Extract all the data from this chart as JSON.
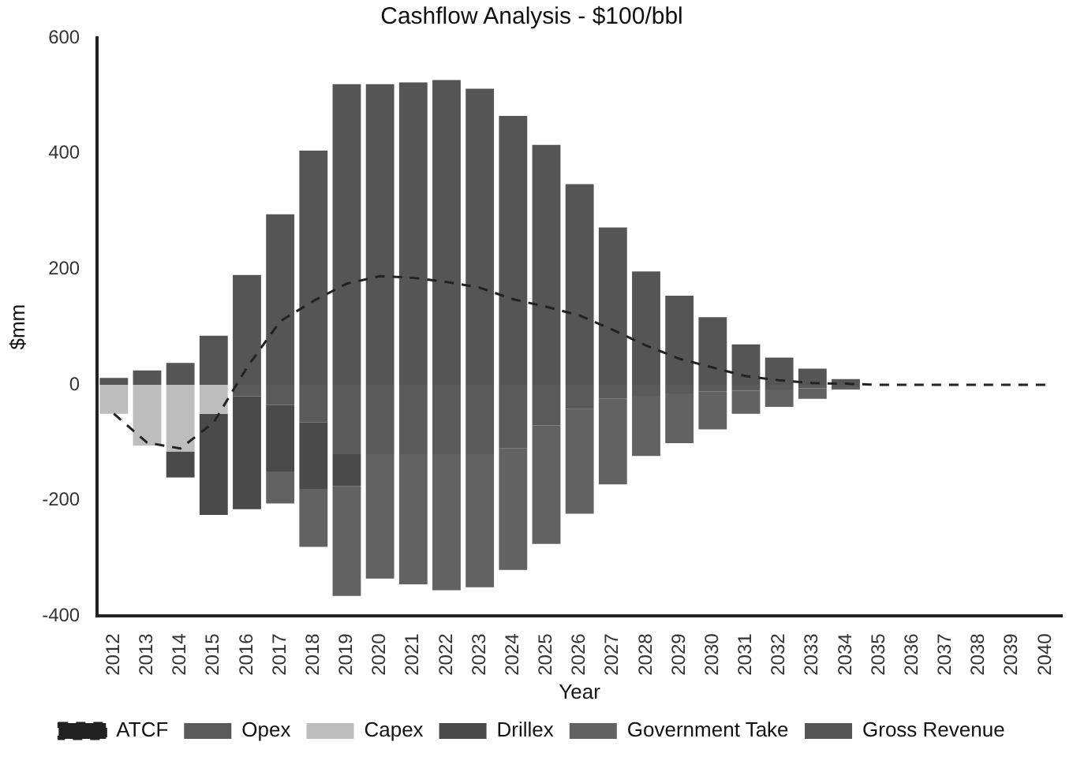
{
  "chart_data": {
    "type": "bar",
    "title": "Cashflow Analysis - $100/bbl",
    "xlabel": "Year",
    "ylabel": "$mm",
    "categories": [
      "2012",
      "2013",
      "2014",
      "2015",
      "2016",
      "2017",
      "2018",
      "2019",
      "2020",
      "2021",
      "2022",
      "2023",
      "2024",
      "2025",
      "2026",
      "2027",
      "2028",
      "2029",
      "2030",
      "2031",
      "2032",
      "2033",
      "2034",
      "2035",
      "2036",
      "2037",
      "2038",
      "2039",
      "2040"
    ],
    "stacked": true,
    "ylim": [
      -400,
      600
    ],
    "yticks": [
      -400,
      -200,
      0,
      200,
      400,
      600
    ],
    "grid": false,
    "legend": "bottom",
    "series": [
      {
        "name": "Opex",
        "color": "#5a5a5a",
        "values": [
          0,
          0,
          0,
          0,
          -20,
          -35,
          -65,
          -120,
          -120,
          -120,
          -120,
          -120,
          -110,
          -70,
          -42,
          -24,
          -19,
          -15,
          -12,
          -10,
          -8,
          -6,
          -4,
          0,
          0,
          0,
          0,
          0,
          0
        ]
      },
      {
        "name": "Capex",
        "color": "#bdbdbd",
        "values": [
          -50,
          -105,
          -115,
          -50,
          0,
          0,
          0,
          0,
          0,
          0,
          0,
          0,
          0,
          0,
          0,
          0,
          0,
          0,
          0,
          0,
          0,
          0,
          0,
          0,
          0,
          0,
          0,
          0,
          0
        ]
      },
      {
        "name": "Drillex",
        "color": "#4a4a4a",
        "values": [
          0,
          0,
          -45,
          -175,
          -195,
          -115,
          -115,
          -55,
          0,
          0,
          0,
          0,
          0,
          0,
          0,
          0,
          0,
          0,
          0,
          0,
          0,
          0,
          0,
          0,
          0,
          0,
          0,
          0,
          0
        ]
      },
      {
        "name": "Government Take",
        "color": "#626262",
        "values": [
          0,
          0,
          0,
          0,
          0,
          -55,
          -100,
          -190,
          -215,
          -225,
          -235,
          -230,
          -210,
          -205,
          -181,
          -148,
          -104,
          -86,
          -65,
          -40,
          -30,
          -18,
          -4,
          0,
          0,
          0,
          0,
          0,
          0
        ]
      },
      {
        "name": "Gross Revenue",
        "color": "#555555",
        "values": [
          12,
          25,
          38,
          85,
          190,
          295,
          405,
          520,
          520,
          523,
          527,
          512,
          465,
          415,
          347,
          272,
          196,
          154,
          117,
          70,
          47,
          28,
          10,
          0,
          0,
          0,
          0,
          0,
          0
        ]
      },
      {
        "name": "ATCF",
        "type": "line",
        "color": "#222222",
        "line_style": "dashed",
        "marker": "none",
        "values": [
          -50,
          -100,
          -110,
          -65,
          30,
          110,
          145,
          175,
          188,
          185,
          178,
          168,
          148,
          135,
          120,
          95,
          68,
          45,
          30,
          15,
          8,
          3,
          2,
          0,
          0,
          0,
          0,
          0,
          0
        ]
      }
    ]
  }
}
